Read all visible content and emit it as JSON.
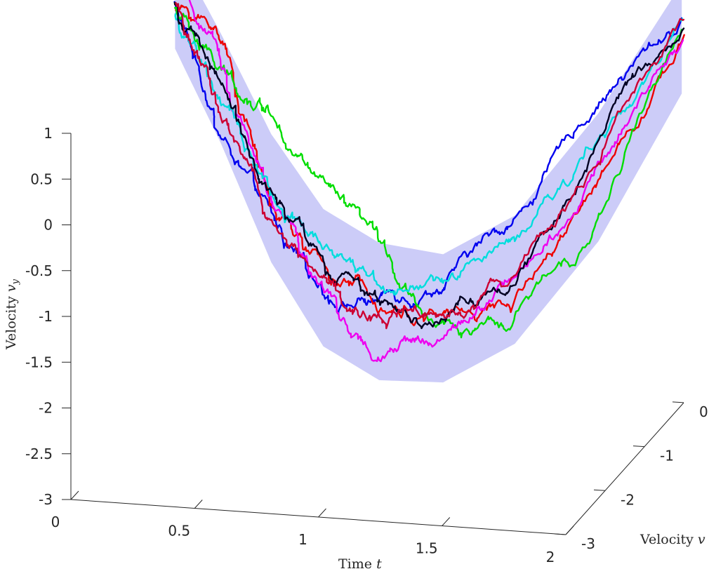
{
  "chart_data": {
    "type": "line",
    "projection": "3d",
    "title": "",
    "xlabel": "Time",
    "xlabel_var": "t",
    "ylabel": "Velocity",
    "ylabel_var": "v",
    "ylabel_sub": "y",
    "zlabel": "Velocity",
    "zlabel_var": "v",
    "xlim": [
      0,
      2
    ],
    "ylim": [
      -3,
      1
    ],
    "zlim": [
      -3,
      0
    ],
    "x_ticks": [
      "0",
      "0.5",
      "1",
      "1.5",
      "2"
    ],
    "y_ticks": [
      "-3",
      "-2.5",
      "-2",
      "-1.5",
      "-1",
      "-0.5",
      "0",
      "0.5",
      "1"
    ],
    "z_ticks": [
      "-3",
      "-2",
      "-1",
      "0"
    ],
    "grid": false,
    "legend": "none",
    "band": {
      "color": "#ccccf8",
      "t": [
        0,
        0.25,
        0.5,
        0.75,
        1,
        1.25,
        1.5,
        1.75,
        2
      ],
      "center_vy": [
        1.2,
        0.45,
        -0.55,
        -1.25,
        -1.5,
        -1.55,
        -1.2,
        -0.3,
        1.0
      ],
      "center_vx": [
        -0.35,
        -0.75,
        -1.05,
        -1.3,
        -1.45,
        -1.4,
        -1.15,
        -0.6,
        -0.05
      ],
      "halfwidth": [
        0.55,
        0.6,
        0.7,
        0.75,
        0.75,
        0.7,
        0.7,
        0.7,
        0.6
      ]
    },
    "series": [
      {
        "color": "#0000ee",
        "t": [
          0,
          0.25,
          0.5,
          0.75,
          1,
          1.25,
          1.5,
          1.75,
          2
        ],
        "vy": [
          1.15,
          0.05,
          -0.9,
          -1.45,
          -1.35,
          -1.1,
          -0.55,
          0.6,
          1.2
        ],
        "vx": [
          -0.35,
          -0.8,
          -1.05,
          -1.25,
          -1.45,
          -1.4,
          -1.05,
          -0.5,
          -0.05
        ]
      },
      {
        "color": "#ee0000",
        "t": [
          0,
          0.25,
          0.5,
          0.75,
          1,
          1.25,
          1.5,
          1.75,
          2
        ],
        "vy": [
          1.1,
          1.0,
          -0.6,
          -1.2,
          -1.35,
          -1.45,
          -1.4,
          -0.2,
          1.05
        ],
        "vx": [
          -0.35,
          -0.65,
          -1.1,
          -1.35,
          -1.5,
          -1.55,
          -1.3,
          -0.7,
          -0.05
        ]
      },
      {
        "color": "#00dd00",
        "t": [
          0,
          0.25,
          0.5,
          0.75,
          1,
          1.25,
          1.5,
          1.75,
          2
        ],
        "vy": [
          1.1,
          0.5,
          0.4,
          -0.45,
          -1.05,
          -1.5,
          -1.7,
          -0.8,
          1.1
        ],
        "vx": [
          -0.35,
          -0.7,
          -0.95,
          -1.15,
          -1.4,
          -1.55,
          -1.35,
          -0.75,
          -0.05
        ]
      },
      {
        "color": "#ee00ee",
        "t": [
          0,
          0.25,
          0.5,
          0.75,
          1,
          1.25,
          1.5,
          1.75,
          2
        ],
        "vy": [
          1.35,
          0.55,
          -0.7,
          -1.4,
          -2.1,
          -1.7,
          -1.2,
          -0.15,
          1.05
        ],
        "vx": [
          -0.35,
          -0.7,
          -1.05,
          -1.3,
          -1.5,
          -1.5,
          -1.25,
          -0.65,
          -0.05
        ]
      },
      {
        "color": "#00dddd",
        "t": [
          0,
          0.25,
          0.5,
          0.75,
          1,
          1.25,
          1.5,
          1.75,
          2
        ],
        "vy": [
          1.05,
          0.25,
          -0.6,
          -0.9,
          -1.15,
          -1.25,
          -0.9,
          0.1,
          1.15
        ],
        "vx": [
          -0.35,
          -0.8,
          -1.05,
          -1.25,
          -1.4,
          -1.35,
          -1.1,
          -0.55,
          -0.05
        ]
      },
      {
        "color": "#000022",
        "t": [
          0,
          0.25,
          0.5,
          0.75,
          1,
          1.25,
          1.5,
          1.75,
          2
        ],
        "vy": [
          1.15,
          0.45,
          -0.55,
          -1.2,
          -1.4,
          -1.5,
          -1.15,
          0.2,
          1.1
        ],
        "vx": [
          -0.35,
          -0.75,
          -1.05,
          -1.3,
          -1.45,
          -1.45,
          -1.2,
          -0.6,
          -0.05
        ]
      },
      {
        "color": "#cc0033",
        "t": [
          0,
          0.25,
          0.5,
          0.75,
          1,
          1.25,
          1.5,
          1.75,
          2
        ],
        "vy": [
          1.1,
          0.35,
          -0.75,
          -1.35,
          -1.45,
          -1.3,
          -1.1,
          -0.1,
          1.05
        ],
        "vx": [
          -0.35,
          -0.75,
          -1.1,
          -1.3,
          -1.5,
          -1.45,
          -1.25,
          -0.7,
          -0.05
        ]
      }
    ]
  }
}
